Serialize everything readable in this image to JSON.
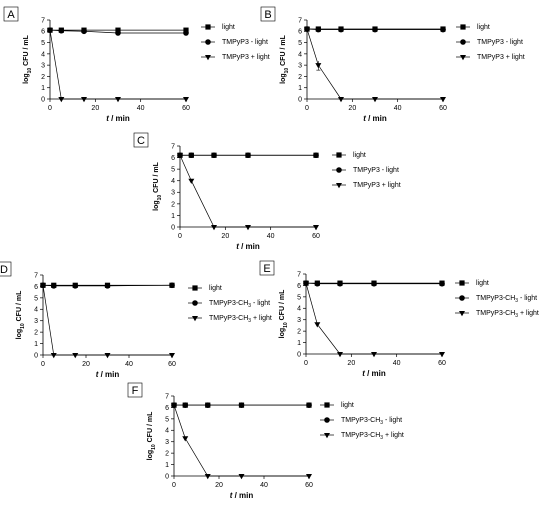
{
  "chart_data": [
    {
      "panel": "A",
      "type": "line",
      "x_label": "t / min",
      "y_label": "log10 CFU / mL",
      "xlim": [
        0,
        60
      ],
      "ylim": [
        0,
        7
      ],
      "xticks": [
        0,
        20,
        40,
        60
      ],
      "yticks": [
        0,
        1,
        2,
        3,
        4,
        5,
        6,
        7
      ],
      "legend_position": "right",
      "series": [
        {
          "name": "light",
          "marker": "square",
          "x": [
            0,
            5,
            15,
            30,
            60
          ],
          "y": [
            6.1,
            6.1,
            6.1,
            6.1,
            6.1
          ]
        },
        {
          "name": "TMPyP3 - light",
          "marker": "circle",
          "x": [
            0,
            5,
            15,
            30,
            60
          ],
          "y": [
            6.1,
            6.05,
            6.0,
            5.85,
            5.85
          ]
        },
        {
          "name": "TMPyP3 + light",
          "marker": "triangle-down",
          "x": [
            0,
            5,
            15,
            30,
            60
          ],
          "y": [
            6.1,
            0,
            0,
            0,
            0
          ]
        }
      ]
    },
    {
      "panel": "B",
      "type": "line",
      "x_label": "t / min",
      "y_label": "log10 CFU / mL",
      "xlim": [
        0,
        60
      ],
      "ylim": [
        0,
        7
      ],
      "xticks": [
        0,
        20,
        40,
        60
      ],
      "yticks": [
        0,
        1,
        2,
        3,
        4,
        5,
        6,
        7
      ],
      "legend_position": "right",
      "series": [
        {
          "name": "light",
          "marker": "square",
          "x": [
            0,
            5,
            15,
            30,
            60
          ],
          "y": [
            6.2,
            6.2,
            6.2,
            6.2,
            6.2
          ]
        },
        {
          "name": "TMPyP3 - light",
          "marker": "circle",
          "x": [
            0,
            5,
            15,
            30,
            60
          ],
          "y": [
            6.2,
            6.15,
            6.15,
            6.15,
            6.15
          ]
        },
        {
          "name": "TMPyP3 + light",
          "marker": "triangle-down",
          "x": [
            0,
            5,
            15,
            30,
            60
          ],
          "y": [
            6.2,
            3.0,
            0,
            0,
            0
          ]
        }
      ]
    },
    {
      "panel": "C",
      "type": "line",
      "x_label": "t / min",
      "y_label": "log10 CFU / mL",
      "xlim": [
        0,
        60
      ],
      "ylim": [
        0,
        7
      ],
      "xticks": [
        0,
        20,
        40,
        60
      ],
      "yticks": [
        0,
        1,
        2,
        3,
        4,
        5,
        6,
        7
      ],
      "legend_position": "right",
      "series": [
        {
          "name": "light",
          "marker": "square",
          "x": [
            0,
            5,
            15,
            30,
            60
          ],
          "y": [
            6.2,
            6.2,
            6.2,
            6.2,
            6.2
          ]
        },
        {
          "name": "TMPyP3 - light",
          "marker": "circle",
          "x": [
            0,
            5,
            15,
            30,
            60
          ],
          "y": [
            6.2,
            6.2,
            6.2,
            6.2,
            6.2
          ]
        },
        {
          "name": "TMPyP3 + light",
          "marker": "triangle-down",
          "x": [
            0,
            5,
            15,
            30,
            60
          ],
          "y": [
            6.2,
            4.0,
            0,
            0,
            0
          ]
        }
      ]
    },
    {
      "panel": "D",
      "type": "line",
      "x_label": "t / min",
      "y_label": "log10 CFU / mL",
      "xlim": [
        0,
        60
      ],
      "ylim": [
        0,
        7
      ],
      "xticks": [
        0,
        20,
        40,
        60
      ],
      "yticks": [
        0,
        1,
        2,
        3,
        4,
        5,
        6,
        7
      ],
      "legend_position": "right",
      "series": [
        {
          "name": "light",
          "marker": "square",
          "x": [
            0,
            5,
            15,
            30,
            60
          ],
          "y": [
            6.1,
            6.1,
            6.1,
            6.1,
            6.1
          ]
        },
        {
          "name": "TMPyP3-CH3 - light",
          "marker": "circle",
          "x": [
            0,
            5,
            15,
            30,
            60
          ],
          "y": [
            6.1,
            6.05,
            6.05,
            6.05,
            6.1
          ]
        },
        {
          "name": "TMPyP3-CH3 + light",
          "marker": "triangle-down",
          "x": [
            0,
            5,
            15,
            30,
            60
          ],
          "y": [
            6.1,
            0,
            0,
            0,
            0
          ]
        }
      ]
    },
    {
      "panel": "E",
      "type": "line",
      "x_label": "t / min",
      "y_label": "log10 CFU / mL",
      "xlim": [
        0,
        60
      ],
      "ylim": [
        0,
        7
      ],
      "xticks": [
        0,
        20,
        40,
        60
      ],
      "yticks": [
        0,
        1,
        2,
        3,
        4,
        5,
        6,
        7
      ],
      "legend_position": "right",
      "series": [
        {
          "name": "light",
          "marker": "square",
          "x": [
            0,
            5,
            15,
            30,
            60
          ],
          "y": [
            6.2,
            6.2,
            6.2,
            6.2,
            6.2
          ]
        },
        {
          "name": "TMPyP3-CH3 - light",
          "marker": "circle",
          "x": [
            0,
            5,
            15,
            30,
            60
          ],
          "y": [
            6.2,
            6.15,
            6.15,
            6.15,
            6.15
          ]
        },
        {
          "name": "TMPyP3-CH3 + light",
          "marker": "triangle-down",
          "x": [
            0,
            5,
            15,
            30,
            60
          ],
          "y": [
            6.2,
            2.6,
            0,
            0,
            0
          ]
        }
      ]
    },
    {
      "panel": "F",
      "type": "line",
      "x_label": "t / min",
      "y_label": "log10 CFU / mL",
      "xlim": [
        0,
        60
      ],
      "ylim": [
        0,
        7
      ],
      "xticks": [
        0,
        20,
        40,
        60
      ],
      "yticks": [
        0,
        1,
        2,
        3,
        4,
        5,
        6,
        7
      ],
      "legend_position": "right",
      "series": [
        {
          "name": "light",
          "marker": "square",
          "x": [
            0,
            5,
            15,
            30,
            60
          ],
          "y": [
            6.2,
            6.2,
            6.2,
            6.2,
            6.2
          ]
        },
        {
          "name": "TMPyP3-CH3 - light",
          "marker": "circle",
          "x": [
            0,
            5,
            15,
            30,
            60
          ],
          "y": [
            6.2,
            6.2,
            6.2,
            6.2,
            6.2
          ]
        },
        {
          "name": "TMPyP3-CH3 + light",
          "marker": "triangle-down",
          "x": [
            0,
            5,
            15,
            30,
            60
          ],
          "y": [
            6.2,
            3.3,
            0,
            0,
            0
          ]
        }
      ]
    }
  ]
}
